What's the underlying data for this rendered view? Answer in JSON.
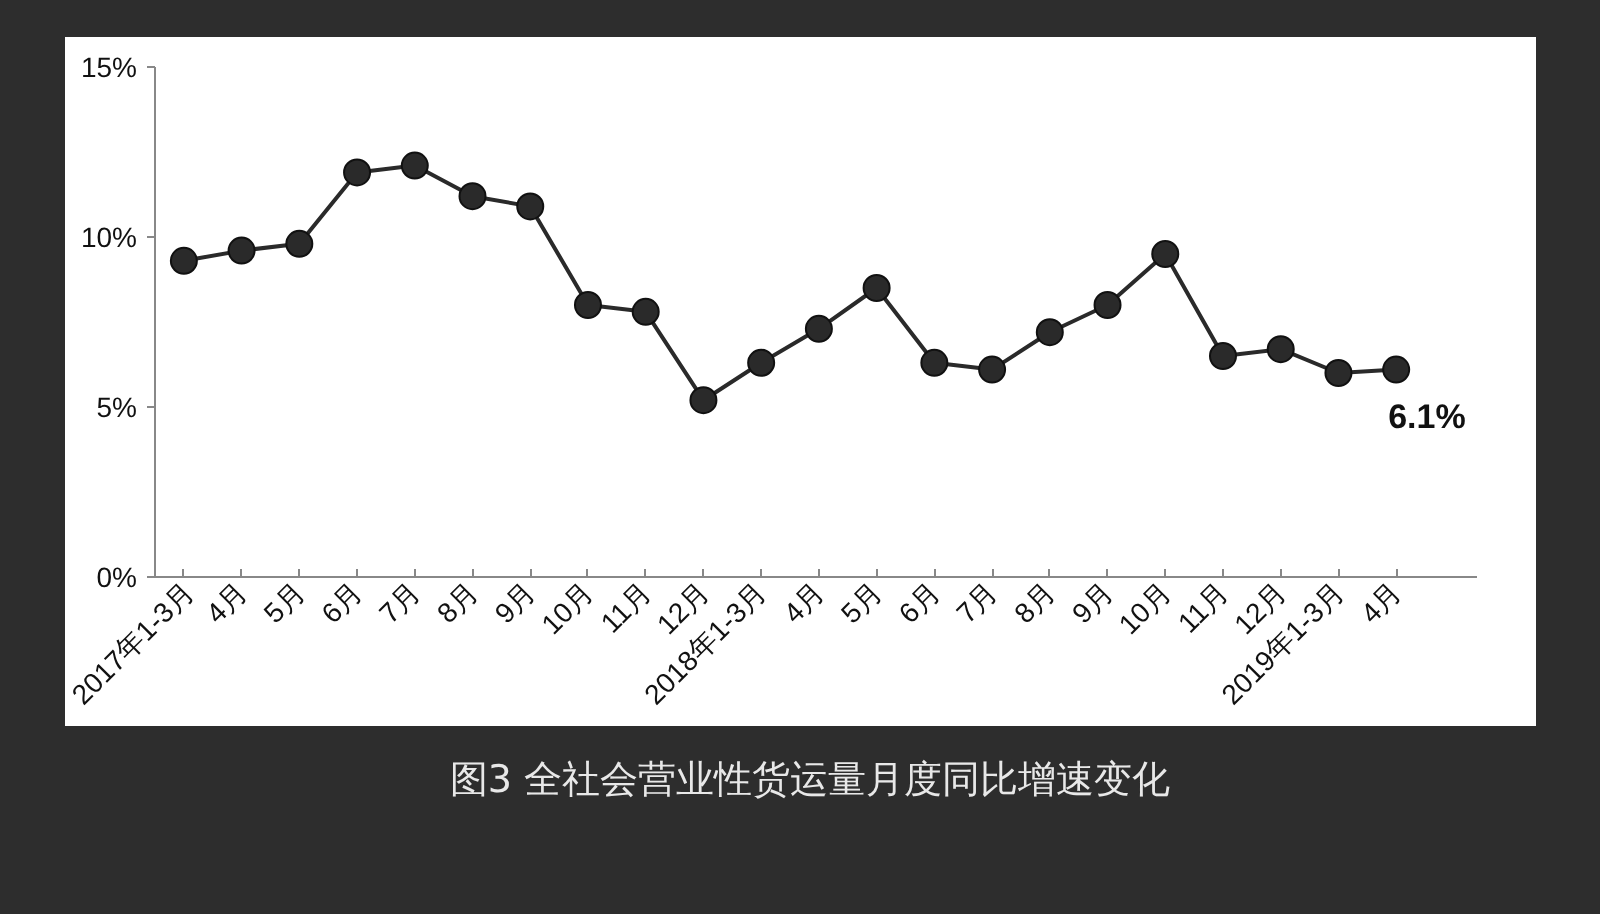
{
  "chart_data": {
    "type": "line",
    "title": "图3  全社会营业性货运量月度同比增速变化",
    "categories": [
      "2017年1-3月",
      "4月",
      "5月",
      "6月",
      "7月",
      "8月",
      "9月",
      "10月",
      "11月",
      "12月",
      "2018年1-3月",
      "4月",
      "5月",
      "6月",
      "7月",
      "8月",
      "9月",
      "10月",
      "11月",
      "12月",
      "2019年1-3月",
      "4月"
    ],
    "series": [
      {
        "color": "#2a2a2a",
        "values": [
          9.3,
          9.6,
          9.8,
          11.9,
          12.1,
          11.2,
          10.9,
          8.0,
          7.8,
          5.2,
          6.3,
          7.3,
          8.5,
          6.3,
          6.1,
          7.2,
          8.0,
          9.5,
          6.5,
          6.7,
          6.0,
          6.1
        ],
        "value_labels": [
          null,
          null,
          null,
          null,
          null,
          null,
          null,
          null,
          null,
          null,
          null,
          null,
          null,
          null,
          null,
          null,
          null,
          null,
          null,
          null,
          null,
          "6.1%"
        ]
      }
    ],
    "ylim": [
      0,
      15
    ],
    "yticks": [
      {
        "value": 0,
        "label": "0%"
      },
      {
        "value": 5,
        "label": "5%"
      },
      {
        "value": 10,
        "label": "10%"
      },
      {
        "value": 15,
        "label": "15%"
      }
    ],
    "grid": false,
    "marker": "circle",
    "line_style": "solid"
  }
}
